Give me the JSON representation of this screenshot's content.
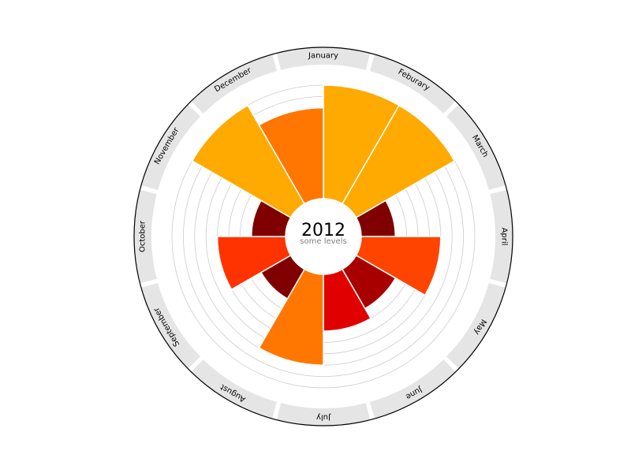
{
  "chart_data": {
    "type": "polar-bar",
    "title": "2012",
    "subtitle": "some levels",
    "categories": [
      "January",
      "Feburary",
      "March",
      "April",
      "May",
      "June",
      "July",
      "August",
      "September",
      "October",
      "November",
      "December"
    ],
    "values": [
      10,
      10,
      3,
      7,
      4,
      5,
      8,
      3,
      6,
      3,
      10,
      8
    ],
    "bar_order_by_angle": [
      {
        "label": "January",
        "value": 10
      },
      {
        "label": "Feburary",
        "value": 10
      },
      {
        "label": "March",
        "value": 3
      },
      {
        "label": "April",
        "value": 7
      },
      {
        "label": "May",
        "value": 4
      },
      {
        "label": "June",
        "value": 5
      },
      {
        "label": "July",
        "value": 8
      },
      {
        "label": "August",
        "value": 3
      },
      {
        "label": "September",
        "value": 6
      },
      {
        "label": "October",
        "value": 3
      },
      {
        "label": "November",
        "value": 10
      },
      {
        "label": "December",
        "value": 8
      }
    ],
    "ylim": [
      0,
      10
    ],
    "grid": true,
    "gridline_values": [
      3,
      4,
      5,
      6,
      7,
      8,
      9,
      10
    ],
    "colors": {
      "value_3": "#800000",
      "value_4": "#a80000",
      "value_5": "#e00000",
      "value_6": "#ff3300",
      "value_7": "#ff4400",
      "value_8": "#ff7700",
      "value_10": "#ffaa00",
      "ring_band": "#e5e5e5",
      "grid": "#cccccc",
      "outline": "#000000"
    }
  }
}
